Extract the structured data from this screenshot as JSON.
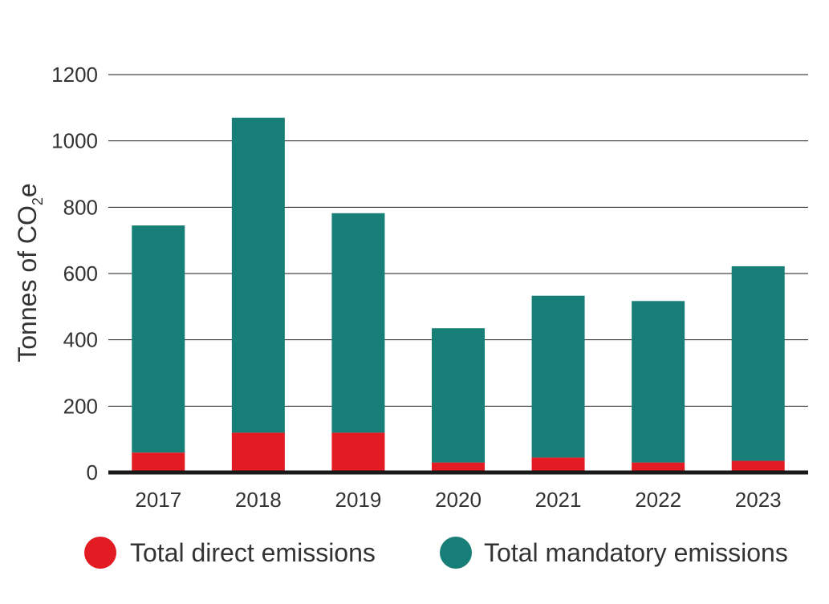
{
  "chart_data": {
    "type": "bar",
    "stacked": true,
    "categories": [
      "2017",
      "2018",
      "2019",
      "2020",
      "2021",
      "2022",
      "2023"
    ],
    "series": [
      {
        "name": "Total direct emissions",
        "color": "#e31b23",
        "values": [
          60,
          120,
          120,
          30,
          45,
          30,
          35
        ]
      },
      {
        "name": "Total mandatory emissions",
        "color": "#187f78",
        "values": [
          685,
          950,
          662,
          405,
          488,
          487,
          587
        ]
      }
    ],
    "totals": [
      745,
      1070,
      782,
      435,
      533,
      517,
      622
    ],
    "ylabel": {
      "main": "Tonnes of CO",
      "subscript": "2",
      "suffix": "e"
    },
    "ylim": [
      0,
      1200
    ],
    "yticks": [
      0,
      200,
      400,
      600,
      800,
      1000,
      1200
    ],
    "grid": true,
    "legend_position": "bottom"
  }
}
